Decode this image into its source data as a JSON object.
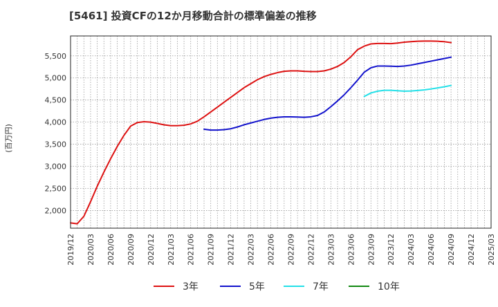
{
  "chart_data": {
    "type": "line",
    "title": "[5461]  投資CFの12か月移動合計の標準偏差の推移",
    "ylabel": "(百万円)",
    "xlabel": "",
    "ylim": [
      1600,
      5950
    ],
    "yticks": [
      2000,
      2500,
      3000,
      3500,
      4000,
      4500,
      5000,
      5500
    ],
    "ytick_labels": [
      "2,000",
      "2,500",
      "3,000",
      "3,500",
      "4,000",
      "4,500",
      "5,000",
      "5,500"
    ],
    "x_range": [
      "2019-12",
      "2025-03"
    ],
    "xtick_labels": [
      "2019/12",
      "2020/03",
      "2020/06",
      "2020/09",
      "2020/12",
      "2021/03",
      "2021/06",
      "2021/09",
      "2021/12",
      "2022/03",
      "2022/06",
      "2022/09",
      "2022/12",
      "2023/03",
      "2023/06",
      "2023/09",
      "2023/12",
      "2024/03",
      "2024/06",
      "2024/09",
      "2024/12",
      "2025/03"
    ],
    "grid": true,
    "legend_position": "bottom",
    "series": [
      {
        "name": "3年",
        "color": "#dd1111",
        "x": [
          "2019-12",
          "2020-01",
          "2020-02",
          "2020-03",
          "2020-04",
          "2020-05",
          "2020-06",
          "2020-07",
          "2020-08",
          "2020-09",
          "2020-10",
          "2020-11",
          "2020-12",
          "2021-01",
          "2021-02",
          "2021-03",
          "2021-04",
          "2021-05",
          "2021-06",
          "2021-07",
          "2021-08",
          "2021-09",
          "2021-10",
          "2021-11",
          "2021-12",
          "2022-01",
          "2022-02",
          "2022-03",
          "2022-04",
          "2022-05",
          "2022-06",
          "2022-07",
          "2022-08",
          "2022-09",
          "2022-10",
          "2022-11",
          "2022-12",
          "2023-01",
          "2023-02",
          "2023-03",
          "2023-04",
          "2023-05",
          "2023-06",
          "2023-07",
          "2023-08",
          "2023-09",
          "2023-10",
          "2023-11",
          "2023-12",
          "2024-01",
          "2024-02",
          "2024-03",
          "2024-04",
          "2024-05",
          "2024-06",
          "2024-07",
          "2024-08",
          "2024-09"
        ],
        "values": [
          1720,
          1700,
          1870,
          2200,
          2550,
          2870,
          3170,
          3450,
          3700,
          3910,
          3990,
          4010,
          4000,
          3970,
          3940,
          3920,
          3920,
          3930,
          3960,
          4020,
          4120,
          4230,
          4340,
          4450,
          4560,
          4670,
          4780,
          4870,
          4960,
          5030,
          5080,
          5120,
          5150,
          5160,
          5160,
          5150,
          5145,
          5145,
          5160,
          5200,
          5260,
          5350,
          5480,
          5640,
          5720,
          5770,
          5780,
          5780,
          5775,
          5790,
          5810,
          5820,
          5830,
          5835,
          5835,
          5830,
          5820,
          5800
        ]
      },
      {
        "name": "5年",
        "color": "#1111cc",
        "x": [
          "2021-08",
          "2021-09",
          "2021-10",
          "2021-11",
          "2021-12",
          "2022-01",
          "2022-02",
          "2022-03",
          "2022-04",
          "2022-05",
          "2022-06",
          "2022-07",
          "2022-08",
          "2022-09",
          "2022-10",
          "2022-11",
          "2022-12",
          "2023-01",
          "2023-02",
          "2023-03",
          "2023-04",
          "2023-05",
          "2023-06",
          "2023-07",
          "2023-08",
          "2023-09",
          "2023-10",
          "2023-11",
          "2023-12",
          "2024-01",
          "2024-02",
          "2024-03",
          "2024-04",
          "2024-05",
          "2024-06",
          "2024-07",
          "2024-08",
          "2024-09"
        ],
        "values": [
          3840,
          3820,
          3820,
          3830,
          3850,
          3890,
          3940,
          3980,
          4020,
          4060,
          4090,
          4110,
          4120,
          4120,
          4115,
          4110,
          4120,
          4150,
          4230,
          4350,
          4480,
          4620,
          4780,
          4950,
          5130,
          5230,
          5270,
          5270,
          5265,
          5260,
          5270,
          5290,
          5320,
          5350,
          5380,
          5410,
          5440,
          5470
        ]
      },
      {
        "name": "7年",
        "color": "#22e0e8",
        "x": [
          "2023-08",
          "2023-09",
          "2023-10",
          "2023-11",
          "2023-12",
          "2024-01",
          "2024-02",
          "2024-03",
          "2024-04",
          "2024-05",
          "2024-06",
          "2024-07",
          "2024-08",
          "2024-09"
        ],
        "values": [
          4580,
          4660,
          4700,
          4720,
          4720,
          4710,
          4700,
          4705,
          4715,
          4730,
          4750,
          4775,
          4800,
          4830
        ]
      },
      {
        "name": "10年",
        "color": "#118811",
        "x": [],
        "values": []
      }
    ]
  }
}
